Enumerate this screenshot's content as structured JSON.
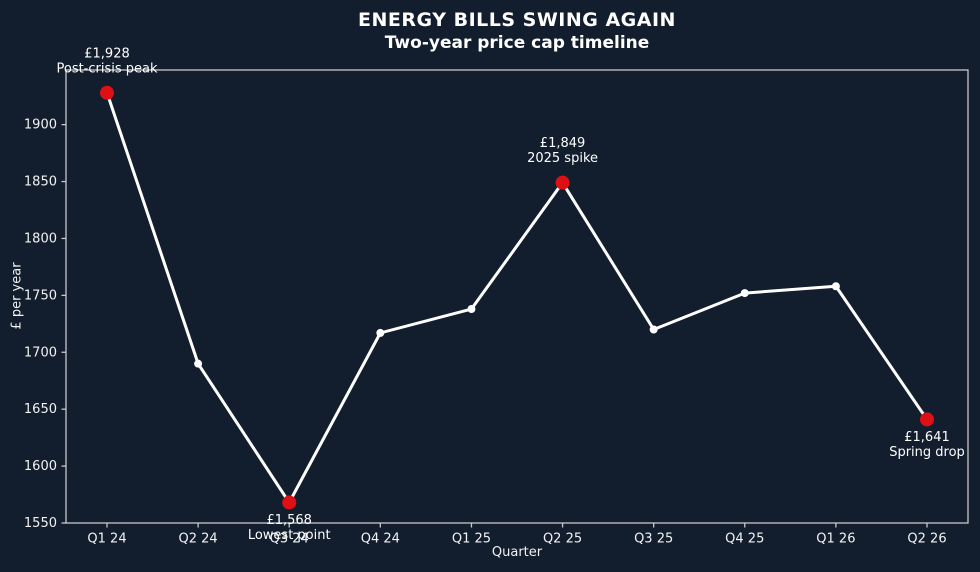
{
  "chart_data": {
    "type": "line",
    "title": "ENERGY BILLS SWING AGAIN",
    "subtitle": "Two-year price cap timeline",
    "xlabel": "Quarter",
    "ylabel": "£ per year",
    "categories": [
      "Q1 24",
      "Q2 24",
      "Q3 24",
      "Q4 24",
      "Q1 25",
      "Q2 25",
      "Q3 25",
      "Q4 25",
      "Q1 26",
      "Q2 26"
    ],
    "values": [
      1928,
      1690,
      1568,
      1717,
      1738,
      1849,
      1720,
      1752,
      1758,
      1641
    ],
    "ylim": [
      1550,
      1948
    ],
    "yticks": [
      1550,
      1600,
      1650,
      1700,
      1750,
      1800,
      1850,
      1900
    ],
    "grid": false,
    "legend": null,
    "annotations": [
      {
        "index": 0,
        "value_label": "£1,928",
        "caption": "Post-crisis peak",
        "placement": "above"
      },
      {
        "index": 2,
        "value_label": "£1,568",
        "caption": "Lowest point",
        "placement": "below"
      },
      {
        "index": 5,
        "value_label": "£1,849",
        "caption": "2025 spike",
        "placement": "above"
      },
      {
        "index": 9,
        "value_label": "£1,641",
        "caption": "Spring drop",
        "placement": "below"
      }
    ],
    "colors": {
      "background": "#121d2d",
      "line": "#ffffff",
      "marker": "#ffffff",
      "highlight": "#dd1015",
      "axis": "#c9c9c9",
      "text": "#f2f2f2",
      "title_text": "#ffffff"
    }
  }
}
